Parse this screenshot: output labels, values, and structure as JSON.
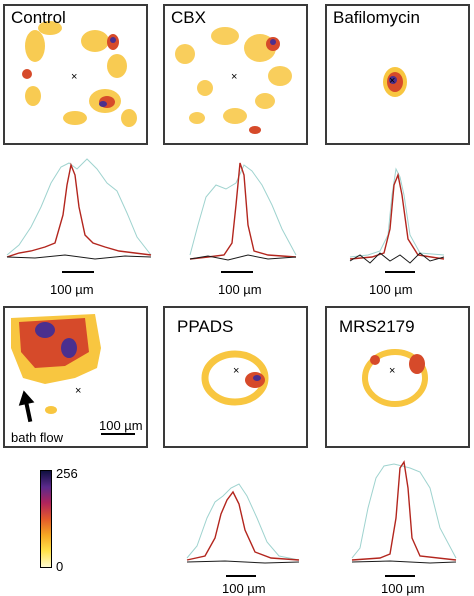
{
  "panels": [
    {
      "title": "Control"
    },
    {
      "title": "CBX"
    },
    {
      "title": "Bafilomycin"
    },
    {
      "title": ""
    },
    {
      "title": "PPADS"
    },
    {
      "title": "MRS2179"
    }
  ],
  "control_flow": {
    "arrow_label": "bath flow",
    "scale_label": "100 µm"
  },
  "profile_scale_label": "100 µm",
  "colorbar": {
    "max_label": "256",
    "min_label": "0",
    "stops": [
      "#fffbd0",
      "#ffe24a",
      "#f5a623",
      "#e35a2b",
      "#b0245b",
      "#5b2a8c",
      "#101040"
    ]
  },
  "colors": {
    "cyan_trace": "#9fd3cf",
    "red_trace": "#b3261e",
    "black_trace": "#1a1a1a",
    "frame": "#3a3a3a"
  }
}
